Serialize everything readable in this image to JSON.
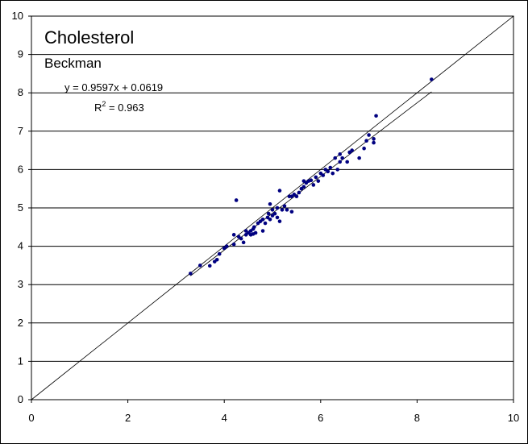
{
  "chart_data": {
    "type": "scatter",
    "title": "Cholesterol",
    "subtitle": "Beckman",
    "xlabel": "",
    "ylabel": "",
    "xlim": [
      0,
      10
    ],
    "ylim": [
      0,
      10
    ],
    "x_ticks": [
      "0",
      "2",
      "4",
      "6",
      "8",
      "10"
    ],
    "y_ticks": [
      "0",
      "1",
      "2",
      "3",
      "4",
      "5",
      "6",
      "7",
      "8",
      "9",
      "10"
    ],
    "grid": "horizontal",
    "legend": "none",
    "equation_label": "y = 0.9597x + 0.0619",
    "r_squared_prefix": "R",
    "r_squared_exponent": "2",
    "r_squared_value": " = 0.963",
    "trendline": {
      "slope": 0.9597,
      "intercept": 0.0619,
      "x_range": [
        3.3,
        8.3
      ]
    },
    "identity_line": {
      "x_range": [
        0,
        10
      ]
    },
    "point_color": "#000080",
    "series": [
      {
        "points": [
          [
            3.3,
            3.29
          ],
          [
            3.5,
            3.5
          ],
          [
            3.7,
            3.49
          ],
          [
            3.8,
            3.6
          ],
          [
            3.85,
            3.65
          ],
          [
            3.9,
            3.8
          ],
          [
            4.0,
            3.95
          ],
          [
            4.05,
            4.0
          ],
          [
            4.2,
            4.05
          ],
          [
            4.2,
            4.3
          ],
          [
            4.25,
            5.2
          ],
          [
            4.3,
            4.25
          ],
          [
            4.35,
            4.2
          ],
          [
            4.4,
            4.1
          ],
          [
            4.45,
            4.3
          ],
          [
            4.45,
            4.4
          ],
          [
            4.5,
            4.35
          ],
          [
            4.55,
            4.4
          ],
          [
            4.55,
            4.3
          ],
          [
            4.6,
            4.32
          ],
          [
            4.6,
            4.45
          ],
          [
            4.62,
            4.5
          ],
          [
            4.65,
            4.35
          ],
          [
            4.7,
            4.6
          ],
          [
            4.75,
            4.65
          ],
          [
            4.8,
            4.4
          ],
          [
            4.8,
            4.7
          ],
          [
            4.85,
            4.6
          ],
          [
            4.9,
            4.75
          ],
          [
            4.92,
            4.85
          ],
          [
            4.95,
            4.7
          ],
          [
            4.95,
            5.1
          ],
          [
            5.0,
            4.8
          ],
          [
            5.0,
            4.95
          ],
          [
            5.05,
            4.85
          ],
          [
            5.1,
            4.75
          ],
          [
            5.1,
            5.0
          ],
          [
            5.15,
            4.65
          ],
          [
            5.15,
            5.45
          ],
          [
            5.2,
            4.95
          ],
          [
            5.25,
            5.05
          ],
          [
            5.3,
            4.95
          ],
          [
            5.35,
            5.3
          ],
          [
            5.4,
            4.9
          ],
          [
            5.4,
            5.3
          ],
          [
            5.45,
            5.35
          ],
          [
            5.5,
            5.3
          ],
          [
            5.55,
            5.4
          ],
          [
            5.6,
            5.5
          ],
          [
            5.65,
            5.55
          ],
          [
            5.65,
            5.7
          ],
          [
            5.7,
            5.65
          ],
          [
            5.75,
            5.7
          ],
          [
            5.8,
            5.72
          ],
          [
            5.85,
            5.6
          ],
          [
            5.9,
            5.8
          ],
          [
            5.95,
            5.7
          ],
          [
            6.0,
            5.9
          ],
          [
            6.05,
            5.85
          ],
          [
            6.1,
            6.0
          ],
          [
            6.15,
            5.95
          ],
          [
            6.2,
            6.05
          ],
          [
            6.25,
            5.9
          ],
          [
            6.3,
            6.3
          ],
          [
            6.35,
            6.0
          ],
          [
            6.4,
            6.2
          ],
          [
            6.4,
            6.4
          ],
          [
            6.45,
            6.3
          ],
          [
            6.55,
            6.2
          ],
          [
            6.6,
            6.45
          ],
          [
            6.65,
            6.5
          ],
          [
            6.8,
            6.3
          ],
          [
            6.9,
            6.55
          ],
          [
            6.95,
            6.75
          ],
          [
            7.0,
            6.9
          ],
          [
            7.1,
            6.7
          ],
          [
            7.1,
            6.8
          ],
          [
            7.15,
            7.4
          ],
          [
            8.3,
            8.35
          ]
        ]
      }
    ]
  }
}
